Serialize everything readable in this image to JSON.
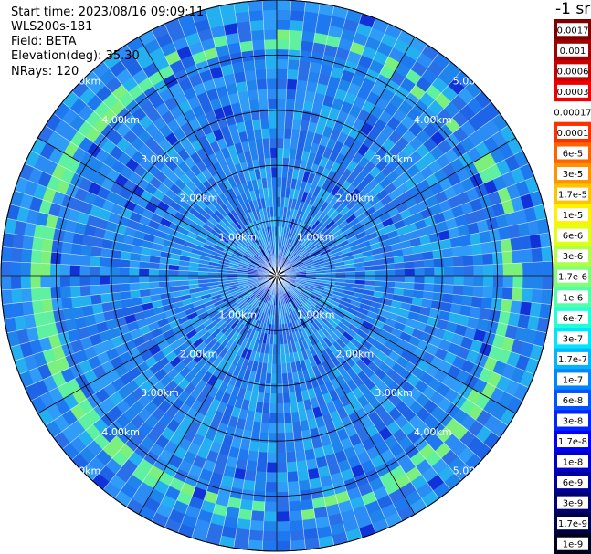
{
  "header": {
    "start_time": "Start time: 2023/08/16 09:09:11",
    "radar": "WLS200s-181",
    "field": "Field: BETA",
    "elevation": "Elevation(deg): 35.30",
    "nrays": "NRays: 120"
  },
  "chart_data": {
    "type": "heatmap",
    "projection": "polar (PPI)",
    "title": "",
    "range_rings_km": [
      1,
      2,
      3,
      4,
      5
    ],
    "ring_labels": [
      "1.00km",
      "2.00km",
      "3.00km",
      "4.00km",
      "5.00km"
    ],
    "n_rays": 120,
    "max_range_km": 5.0,
    "aerosol_ring_range_km": 4.3,
    "colorbar": {
      "unit_label": "-1 sr",
      "tick_labels": [
        "0.0017",
        "0.001",
        "0.0006",
        "0.0003",
        "0.00017",
        "0.0001",
        "6e-5",
        "3e-5",
        "1.7e-5",
        "1e-5",
        "6e-6",
        "3e-6",
        "1.7e-6",
        "1e-6",
        "6e-7",
        "3e-7",
        "1.7e-7",
        "1e-7",
        "6e-8",
        "3e-8",
        "1.7e-8",
        "1e-8",
        "6e-9",
        "3e-9",
        "1.7e-9",
        "1e-9"
      ],
      "colors": [
        "#800000",
        "#a00000",
        "#c80000",
        "#f00000",
        "#ffffff",
        "#ff3000",
        "#ff6200",
        "#ff9200",
        "#ffc400",
        "#fff200",
        "#e0ff18",
        "#b0ff48",
        "#80ff78",
        "#50ffa8",
        "#20ffd8",
        "#00e4ff",
        "#00b4ff",
        "#0084ff",
        "#0054ff",
        "#0024ff",
        "#0000f4",
        "#0000c8",
        "#00009c",
        "#000070",
        "#000048",
        "#00001e"
      ]
    },
    "colors": {
      "background_field": "#1e78f0",
      "aerosol_ring": "#7cf07c"
    }
  }
}
